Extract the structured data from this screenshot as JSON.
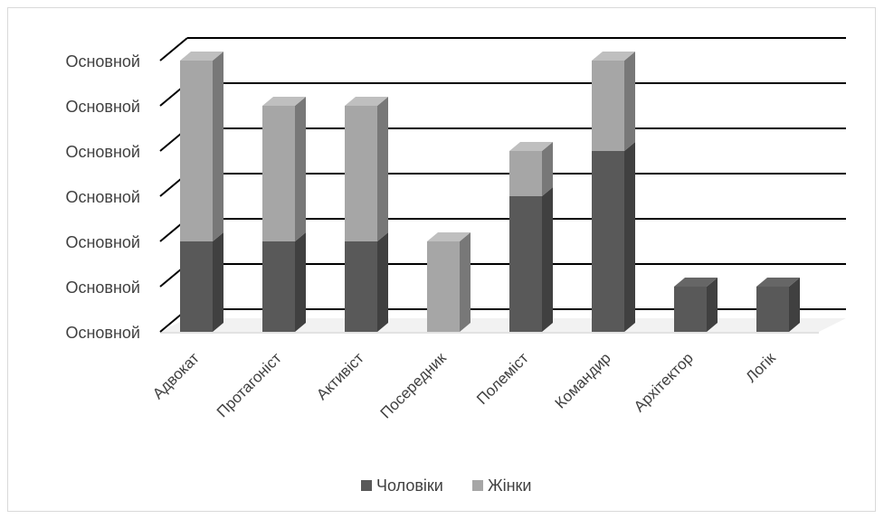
{
  "chart_data": {
    "type": "bar",
    "stacked": true,
    "three_d": true,
    "categories": [
      "Адвокат",
      "Протагоніст",
      "Активіст",
      "Посередник",
      "Полеміст",
      "Командир",
      "Архітектор",
      "Логік"
    ],
    "series": [
      {
        "name": "Чоловіки",
        "color": "#595959",
        "values": [
          2,
          2,
          2,
          0,
          3,
          4,
          1,
          1
        ]
      },
      {
        "name": "Жінки",
        "color": "#a6a6a6",
        "values": [
          4,
          3,
          3,
          2,
          1,
          2,
          0,
          0
        ]
      }
    ],
    "y_tick_labels": [
      "Основной",
      "Основной",
      "Основной",
      "Основной",
      "Основной",
      "Основной",
      "Основной"
    ],
    "ylim": [
      0,
      6
    ],
    "grid": true,
    "legend_position": "bottom",
    "title": "",
    "xlabel": "",
    "ylabel": ""
  }
}
